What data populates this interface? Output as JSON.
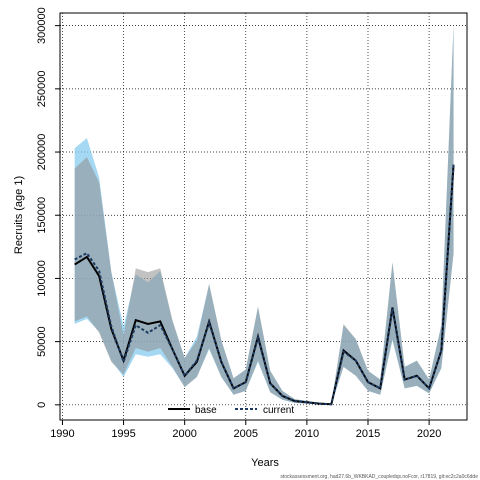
{
  "chart_data": {
    "type": "line",
    "xlabel": "Years",
    "ylabel": "Recruits (age 1)",
    "xlim": [
      1989.8,
      2023.1
    ],
    "ylim": [
      -12000,
      310000
    ],
    "x_ticks": [
      1990,
      1995,
      2000,
      2005,
      2010,
      2015,
      2020
    ],
    "y_ticks": [
      0,
      50000,
      100000,
      150000,
      200000,
      250000,
      300000
    ],
    "grid": true,
    "grid_style": "dotted",
    "legend_position": "bottom-center",
    "footnote": "stockassessment.org, had27.6b_WKBKAD_coupledqs.noFcor, r17819, git:ec2c2a0c6dde",
    "colors": {
      "base_line": "#000000",
      "base_band": "#909090",
      "current_line": "#1f3a60",
      "current_band": "#87cbee",
      "overlap_band": "#8fb0c5"
    },
    "x": [
      1991,
      1992,
      1993,
      1994,
      1995,
      1996,
      1997,
      1998,
      1999,
      2000,
      2001,
      2002,
      2003,
      2004,
      2005,
      2006,
      2007,
      2008,
      2009,
      2010,
      2011,
      2012,
      2013,
      2014,
      2015,
      2016,
      2017,
      2018,
      2019,
      2020,
      2021,
      2022
    ],
    "series": [
      {
        "name": "base",
        "values": [
          111000,
          117000,
          102000,
          60000,
          35000,
          67000,
          64000,
          66000,
          44000,
          23000,
          34000,
          66000,
          34000,
          13000,
          18000,
          54000,
          17000,
          7000,
          3000,
          2000,
          1000,
          500,
          43000,
          35000,
          18000,
          13000,
          77000,
          20000,
          23000,
          13000,
          43000,
          190000
        ],
        "lower": [
          66000,
          70000,
          57000,
          34000,
          24000,
          45000,
          42000,
          45000,
          30000,
          14000,
          22000,
          45000,
          22000,
          8000,
          11000,
          35000,
          10000,
          4000,
          1500,
          1000,
          400,
          200,
          30000,
          23000,
          11000,
          8000,
          52000,
          13000,
          15000,
          9000,
          29000,
          120000
        ],
        "upper": [
          187000,
          196000,
          176000,
          105000,
          55000,
          108000,
          105000,
          108000,
          67000,
          37000,
          51000,
          96000,
          51000,
          21000,
          28000,
          78000,
          27000,
          11000,
          4500,
          3000,
          1500,
          800,
          64000,
          52000,
          27000,
          20000,
          113000,
          30000,
          35000,
          20000,
          63000,
          300000
        ]
      },
      {
        "name": "current",
        "values": [
          115000,
          120000,
          106000,
          62000,
          34000,
          63000,
          57000,
          63000,
          44000,
          23000,
          35000,
          65000,
          34000,
          13000,
          18000,
          53000,
          17000,
          7000,
          3000,
          2000,
          1000,
          500,
          42000,
          35000,
          18000,
          13000,
          76000,
          20000,
          23000,
          13000,
          43000,
          190000
        ],
        "lower": [
          64000,
          68000,
          58000,
          35000,
          22000,
          40000,
          38000,
          40000,
          29000,
          14000,
          22000,
          44000,
          22000,
          8000,
          11000,
          34000,
          10000,
          4000,
          1500,
          1000,
          400,
          200,
          30000,
          23000,
          11000,
          8000,
          51000,
          13000,
          15000,
          9000,
          29000,
          120000
        ],
        "upper": [
          203000,
          211000,
          180000,
          105000,
          62000,
          103000,
          97000,
          106000,
          66000,
          37000,
          54000,
          95000,
          51000,
          21000,
          28000,
          77000,
          27000,
          11000,
          4500,
          3000,
          1500,
          800,
          63000,
          52000,
          27000,
          20000,
          112000,
          30000,
          35000,
          20000,
          63000,
          300000
        ]
      }
    ]
  }
}
